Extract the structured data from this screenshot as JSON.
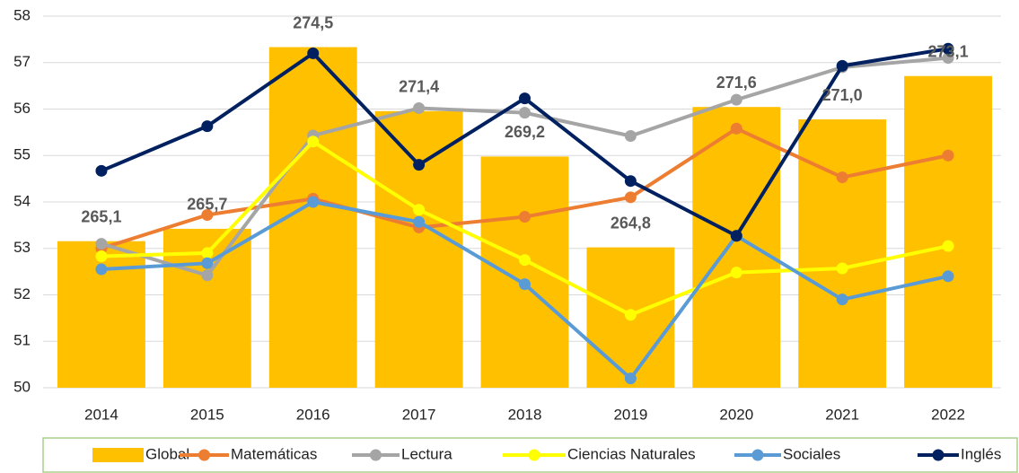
{
  "chart_data": {
    "type": "combo",
    "categories": [
      "2014",
      "2015",
      "2016",
      "2017",
      "2018",
      "2019",
      "2020",
      "2021",
      "2022"
    ],
    "ylim": [
      50,
      58
    ],
    "yticks": [
      50,
      51,
      52,
      53,
      54,
      55,
      56,
      57,
      58
    ],
    "y2lim": [
      258,
      276
    ],
    "grid": true,
    "legend": "bottom",
    "series": [
      {
        "name": "Global",
        "type": "bar",
        "axis": "y2",
        "color": "#FFC000",
        "values": [
          265.1,
          265.7,
          274.5,
          271.4,
          269.2,
          264.8,
          271.6,
          271.0,
          273.1
        ],
        "value_labels": [
          "265,1",
          "265,7",
          "274,5",
          "271,4",
          "269,2",
          "264,8",
          "271,6",
          "271,0",
          "273,1"
        ]
      },
      {
        "name": "Matemáticas",
        "type": "line",
        "color": "#ED7D31",
        "values": [
          53.0,
          53.72,
          54.07,
          53.45,
          53.68,
          54.1,
          55.58,
          54.53,
          55.0
        ]
      },
      {
        "name": "Lectura",
        "type": "line",
        "color": "#A5A5A5",
        "values": [
          53.1,
          52.42,
          55.43,
          56.02,
          55.92,
          55.42,
          56.2,
          56.9,
          57.1
        ]
      },
      {
        "name": "Ciencias Naturales",
        "type": "line",
        "color": "#FFFF00",
        "values": [
          52.83,
          52.9,
          55.3,
          53.83,
          52.75,
          51.57,
          52.48,
          52.57,
          53.05
        ]
      },
      {
        "name": "Sociales",
        "type": "line",
        "color": "#5B9BD5",
        "values": [
          52.55,
          52.68,
          54.0,
          53.57,
          52.23,
          50.2,
          53.27,
          51.9,
          52.4
        ]
      },
      {
        "name": "Inglés",
        "type": "line",
        "color": "#002060",
        "values": [
          54.67,
          55.63,
          57.2,
          54.8,
          56.23,
          54.45,
          53.27,
          56.93,
          57.3
        ]
      }
    ]
  }
}
